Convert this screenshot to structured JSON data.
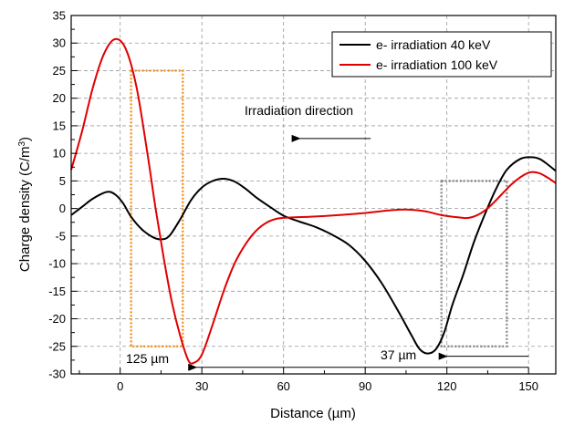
{
  "chart_data": {
    "type": "line",
    "xlabel": "Distance (µm)",
    "ylabel": "Charge density (C/m³)",
    "ylabel_parts": [
      "Charge density (C/m",
      "3",
      ")"
    ],
    "xlim": [
      -18,
      160
    ],
    "ylim": [
      -30,
      35
    ],
    "x_ticks": [
      0,
      30,
      60,
      90,
      120,
      150
    ],
    "y_ticks": [
      -30,
      -25,
      -20,
      -15,
      -10,
      -5,
      0,
      5,
      10,
      15,
      20,
      25,
      30,
      35
    ],
    "grid": true,
    "legend_position": "top-right",
    "series": [
      {
        "name": "e- irradiation 40 keV",
        "color": "#000000",
        "points": [
          [
            -18,
            -1.2
          ],
          [
            -14,
            0.3
          ],
          [
            -10,
            1.8
          ],
          [
            -5,
            3
          ],
          [
            -2,
            2.6
          ],
          [
            1,
            1
          ],
          [
            4,
            -1.5
          ],
          [
            8,
            -3.8
          ],
          [
            12,
            -5.2
          ],
          [
            15,
            -5.6
          ],
          [
            18,
            -5
          ],
          [
            22,
            -2
          ],
          [
            26,
            1.5
          ],
          [
            30,
            3.8
          ],
          [
            34,
            5
          ],
          [
            38,
            5.4
          ],
          [
            42,
            4.9
          ],
          [
            46,
            3.6
          ],
          [
            50,
            2
          ],
          [
            55,
            0.3
          ],
          [
            60,
            -1.3
          ],
          [
            66,
            -2.4
          ],
          [
            72,
            -3.4
          ],
          [
            78,
            -4.8
          ],
          [
            84,
            -6.6
          ],
          [
            90,
            -9.5
          ],
          [
            96,
            -13.5
          ],
          [
            102,
            -18.5
          ],
          [
            107,
            -23
          ],
          [
            110,
            -25.5
          ],
          [
            113,
            -26.3
          ],
          [
            116,
            -25.5
          ],
          [
            119,
            -22.5
          ],
          [
            122,
            -17.5
          ],
          [
            126,
            -12
          ],
          [
            130,
            -6
          ],
          [
            134,
            -1
          ],
          [
            138,
            3.5
          ],
          [
            142,
            7
          ],
          [
            147,
            9
          ],
          [
            151,
            9.3
          ],
          [
            154,
            9
          ],
          [
            157,
            8
          ],
          [
            160,
            6.8
          ]
        ]
      },
      {
        "name": "e- irradiation 100 keV",
        "color": "#e00000",
        "points": [
          [
            -18,
            7
          ],
          [
            -14,
            14
          ],
          [
            -10,
            22
          ],
          [
            -6,
            28
          ],
          [
            -2,
            30.7
          ],
          [
            2,
            29
          ],
          [
            6,
            22
          ],
          [
            10,
            10
          ],
          [
            13,
            0
          ],
          [
            16,
            -9
          ],
          [
            19,
            -17
          ],
          [
            22,
            -23
          ],
          [
            25,
            -27.5
          ],
          [
            27,
            -28
          ],
          [
            30,
            -26.5
          ],
          [
            34,
            -21
          ],
          [
            38,
            -15
          ],
          [
            42,
            -10
          ],
          [
            46,
            -6.5
          ],
          [
            50,
            -4
          ],
          [
            54,
            -2.5
          ],
          [
            58,
            -1.8
          ],
          [
            64,
            -1.6
          ],
          [
            70,
            -1.5
          ],
          [
            80,
            -1.2
          ],
          [
            90,
            -0.8
          ],
          [
            100,
            -0.3
          ],
          [
            106,
            -0.2
          ],
          [
            112,
            -0.5
          ],
          [
            118,
            -1.2
          ],
          [
            124,
            -1.6
          ],
          [
            128,
            -1.7
          ],
          [
            132,
            -1
          ],
          [
            136,
            0.5
          ],
          [
            140,
            2.5
          ],
          [
            144,
            4.5
          ],
          [
            148,
            6
          ],
          [
            151,
            6.6
          ],
          [
            154,
            6.4
          ],
          [
            157,
            5.6
          ],
          [
            160,
            4.6
          ]
        ]
      }
    ],
    "annotations": {
      "title_text": "Irradiation direction",
      "label_125": "125 µm",
      "label_37": "37 µm"
    },
    "rects": [
      {
        "x0": 4,
        "x1": 23,
        "y0": -25,
        "y1": 25,
        "color": "#f0931e"
      },
      {
        "x0": 118,
        "x1": 142,
        "y0": -25,
        "y1": 5,
        "color": "#8c8c8c"
      }
    ],
    "arrows": [
      {
        "x_from": 92,
        "x_to": 66,
        "y": 12.7
      },
      {
        "x_from": 150,
        "x_to": 28,
        "y": -28.8
      },
      {
        "x_from": 150,
        "x_to": 120,
        "y": -26.8
      }
    ]
  }
}
